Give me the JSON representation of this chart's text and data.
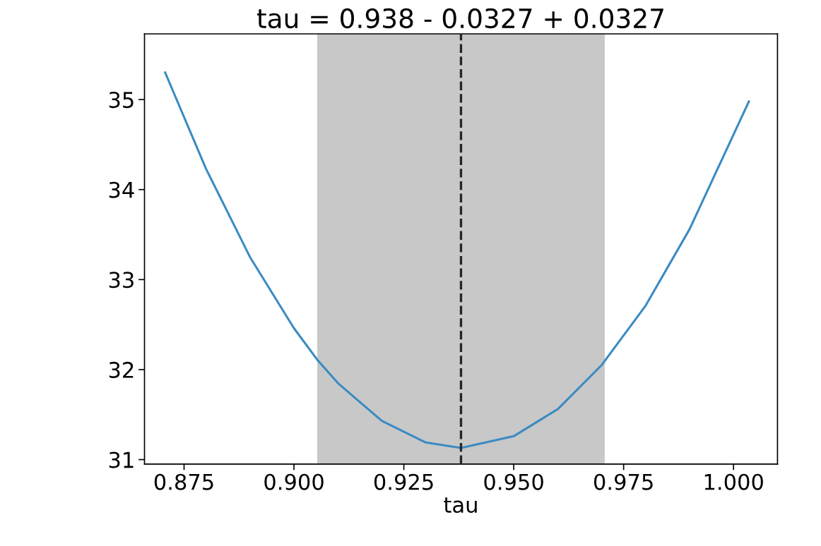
{
  "chart_data": {
    "type": "line",
    "title": "tau = 0.938 - 0.0327 + 0.0327",
    "xlabel": "tau",
    "series": [
      {
        "color": "#3b8bc2",
        "x": [
          0.8707,
          0.88,
          0.89,
          0.9,
          0.9053,
          0.91,
          0.92,
          0.93,
          0.938,
          0.95,
          0.96,
          0.97,
          0.98,
          0.99,
          1.0035
        ],
        "values": [
          35.3,
          34.23,
          33.25,
          32.46,
          32.11,
          31.85,
          31.43,
          31.19,
          31.13,
          31.26,
          31.56,
          32.05,
          32.71,
          33.56,
          34.98
        ]
      }
    ],
    "bands": [
      {
        "axis": "x",
        "from": 0.9053,
        "to": 0.9707,
        "color": "#c8c8c8"
      }
    ],
    "ref_lines": [
      {
        "axis": "x",
        "value": 0.938,
        "color": "#262626",
        "line_style": "dashed"
      }
    ],
    "xlim": [
      0.866,
      1.01
    ],
    "ylim": [
      30.95,
      35.73
    ],
    "xticks": [
      {
        "value": 0.875,
        "label": "0.875"
      },
      {
        "value": 0.9,
        "label": "0.900"
      },
      {
        "value": 0.925,
        "label": "0.925"
      },
      {
        "value": 0.95,
        "label": "0.950"
      },
      {
        "value": 0.975,
        "label": "0.975"
      },
      {
        "value": 1.0,
        "label": "1.000"
      }
    ],
    "yticks": [
      31,
      32,
      33,
      34,
      35
    ],
    "grid": false,
    "legend": false,
    "marker": "none",
    "line_style": "solid"
  }
}
